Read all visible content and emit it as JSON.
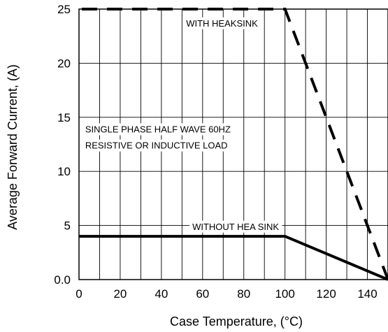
{
  "chart_data": {
    "type": "line",
    "title": "",
    "xlabel": "Case Temperature, (°C)",
    "ylabel": "Average Forward Current, (A)",
    "xlim": [
      0,
      150
    ],
    "ylim": [
      0,
      25
    ],
    "x_ticks": [
      0,
      20,
      40,
      60,
      80,
      100,
      120,
      140
    ],
    "x_tick_labels": [
      "0",
      "20",
      "40",
      "60",
      "80",
      "100",
      "120",
      "140"
    ],
    "y_ticks": [
      0,
      5,
      10,
      15,
      20,
      25
    ],
    "y_tick_labels": [
      "0.0",
      "5",
      "10",
      "15",
      "20",
      "25"
    ],
    "x_grid_step": 10,
    "y_grid_step": 5,
    "grid": true,
    "series": [
      {
        "name": "WITH HEAKSINK",
        "style": "dashed",
        "color": "#000000",
        "x": [
          0,
          100,
          150
        ],
        "y": [
          25,
          25,
          0
        ]
      },
      {
        "name": "WITHOUT HEA SINK",
        "style": "solid",
        "color": "#000000",
        "x": [
          0,
          100,
          150
        ],
        "y": [
          4,
          4,
          0
        ]
      }
    ],
    "annotations": [
      {
        "text": "WITH HEAKSINK",
        "x": 52,
        "y": 23.4
      },
      {
        "text": "SINGLE PHASE HALF WAVE 60HZ",
        "x": 3,
        "y": 13.6
      },
      {
        "text": "RESISTIVE OR INDUCTIVE LOAD",
        "x": 3,
        "y": 12.1
      },
      {
        "text": "WITHOUT HEA SINK",
        "x": 55,
        "y": 4.6
      }
    ]
  }
}
